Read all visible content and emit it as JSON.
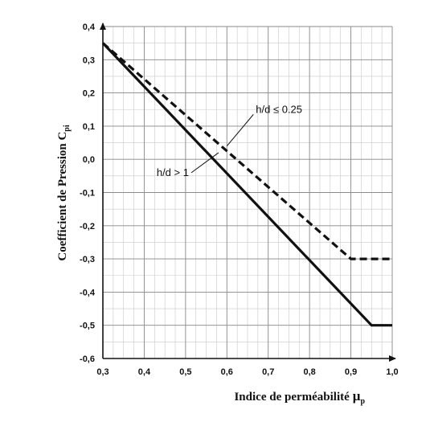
{
  "chart_data": {
    "type": "line",
    "xlabel": "Indice de perméabilité",
    "xlabel_symbol": "μ",
    "xlabel_subscript": "p",
    "ylabel": "Coefficient de Pression C",
    "ylabel_subscript": "pi",
    "xlim": [
      0.3,
      1.0
    ],
    "ylim": [
      -0.6,
      0.4
    ],
    "x_ticks": [
      "0,3",
      "0,4",
      "0,5",
      "0,6",
      "0,7",
      "0,8",
      "0,9",
      "1,0"
    ],
    "x_tick_values": [
      0.3,
      0.4,
      0.5,
      0.6,
      0.7,
      0.8,
      0.9,
      1.0
    ],
    "y_ticks": [
      "0,4",
      "0,3",
      "0,2",
      "0,1",
      "0,0",
      "-0,1",
      "-0,2",
      "-0,3",
      "-0,4",
      "-0,5",
      "-0,6"
    ],
    "y_tick_values": [
      0.4,
      0.3,
      0.2,
      0.1,
      0.0,
      -0.1,
      -0.2,
      -0.3,
      -0.4,
      -0.5,
      -0.6
    ],
    "grid": true,
    "series": [
      {
        "name": "h/d ≤ 0.25",
        "style": "dashed",
        "x": [
          0.3,
          0.9,
          1.0
        ],
        "y": [
          0.35,
          -0.3,
          -0.3
        ]
      },
      {
        "name": "h/d > 1",
        "style": "solid",
        "x": [
          0.3,
          0.95,
          1.0
        ],
        "y": [
          0.35,
          -0.5,
          -0.5
        ]
      }
    ],
    "annotations": [
      {
        "text": "h/d ≤ 0.25",
        "series": 0,
        "x": 0.67,
        "y": 0.14,
        "point_x": 0.6,
        "point_y": 0.04
      },
      {
        "text": "h/d > 1",
        "series": 1,
        "x": 0.43,
        "y": -0.05,
        "point_x": 0.58,
        "point_y": 0.02
      }
    ],
    "colors": {
      "line": "#111111",
      "grid": "#8a8a8a",
      "minor_grid": "#c8c8c8"
    }
  }
}
